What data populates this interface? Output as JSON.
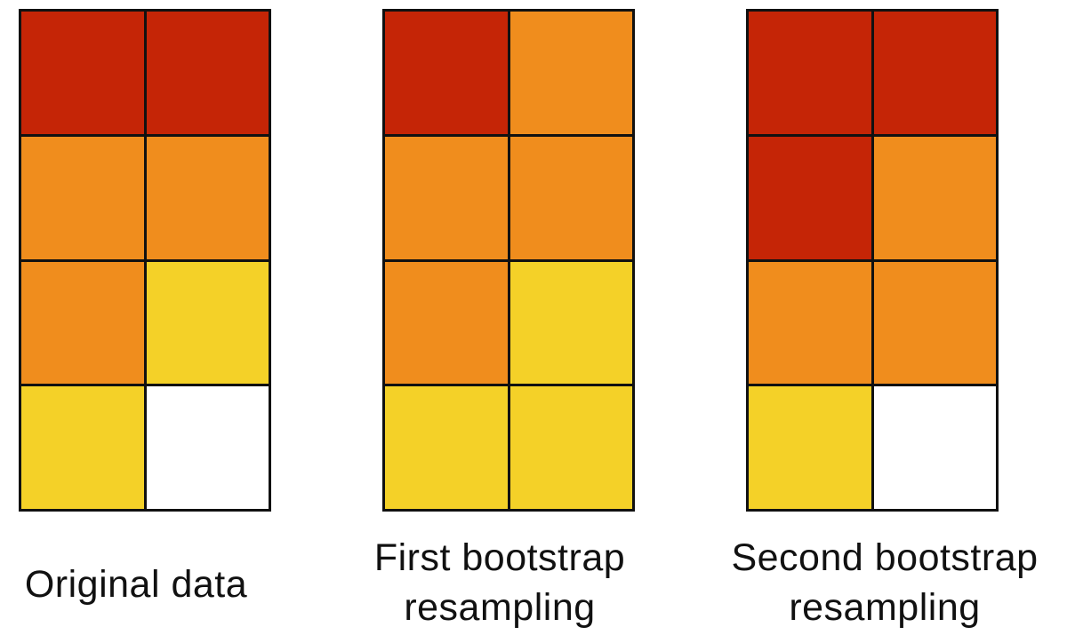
{
  "colors": {
    "R": "#c52506",
    "O": "#f08d1d",
    "Y": "#f4d128",
    "W": "#ffffff"
  },
  "panels": [
    {
      "caption": [
        "Original data"
      ],
      "cells": [
        "R",
        "R",
        "O",
        "O",
        "O",
        "Y",
        "Y",
        "W"
      ]
    },
    {
      "caption": [
        "First bootstrap",
        "resampling"
      ],
      "cells": [
        "R",
        "O",
        "O",
        "O",
        "O",
        "Y",
        "Y",
        "Y"
      ]
    },
    {
      "caption": [
        "Second bootstrap",
        "resampling"
      ],
      "cells": [
        "R",
        "R",
        "R",
        "O",
        "O",
        "O",
        "Y",
        "W"
      ]
    }
  ]
}
